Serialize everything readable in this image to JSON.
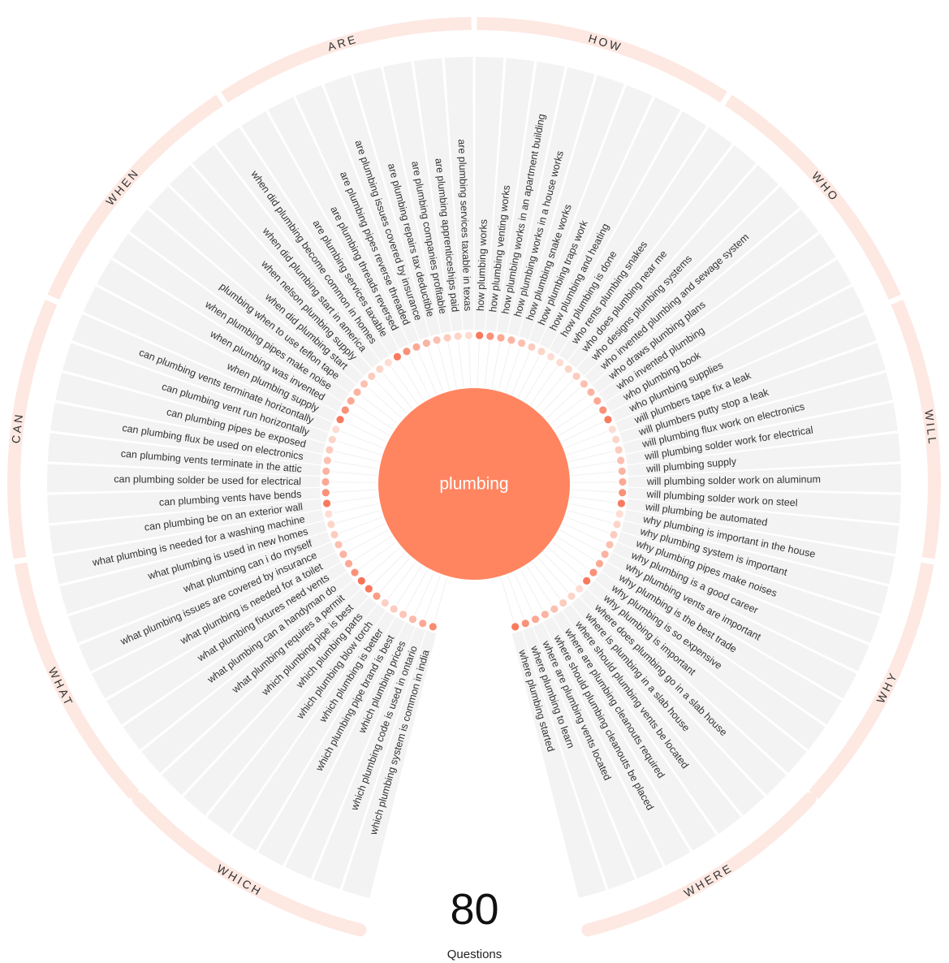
{
  "center": {
    "keyword": "plumbing"
  },
  "summary": {
    "count": "80",
    "label": "Questions"
  },
  "colors": {
    "accent": "#ff8561",
    "ring": "#fde8e2",
    "spoke_bg": "#f3f3f3",
    "dot_light": "#fde3da",
    "text": "#333333"
  },
  "categories": [
    {
      "name": "WHICH",
      "questions": [
        {
          "text": "which plumbing system is common in india",
          "volume": 0.75
        },
        {
          "text": "which plumbing code is used in ontario",
          "volume": 0.5
        },
        {
          "text": "which plumbing prices",
          "volume": 0.35
        },
        {
          "text": "which plumbing pipe brand is best",
          "volume": 0.25
        },
        {
          "text": "which plumbing is better",
          "volume": 0.2
        },
        {
          "text": "which plumbing blow torch",
          "volume": 0.15
        },
        {
          "text": "which plumbing parts",
          "volume": 0.6
        },
        {
          "text": "which plumbing pipe is best",
          "volume": 0.9
        }
      ]
    },
    {
      "name": "WHAT",
      "questions": [
        {
          "text": "what plumbing requires a permit",
          "volume": 0.95
        },
        {
          "text": "what plumbing can a handyman do",
          "volume": 0.7
        },
        {
          "text": "what plumbing fixtures need vents",
          "volume": 0.5
        },
        {
          "text": "what plumbing is needed for a toilet",
          "volume": 0.4
        },
        {
          "text": "what plumbing issues are covered by insurance",
          "volume": 0.3
        },
        {
          "text": "what plumbing can i do myself",
          "volume": 0.2
        },
        {
          "text": "what plumbing is used in new homes",
          "volume": 0.12
        },
        {
          "text": "what plumbing is needed for a washing machine",
          "volume": 0.05
        }
      ]
    },
    {
      "name": "CAN",
      "questions": [
        {
          "text": "can plumbing be on an exterior wall",
          "volume": 0.9
        },
        {
          "text": "can plumbing vents have bends",
          "volume": 0.7
        },
        {
          "text": "can plumbing solder be used for electrical",
          "volume": 0.5
        },
        {
          "text": "can plumbing vents terminate in the attic",
          "volume": 0.4
        },
        {
          "text": "can plumbing flux be used on electronics",
          "volume": 0.3
        },
        {
          "text": "can plumbing pipes be exposed",
          "volume": 0.2
        },
        {
          "text": "can plumbing vent run horizontally",
          "volume": 0.12
        },
        {
          "text": "can plumbing vents terminate horizontally",
          "volume": 0.05
        }
      ]
    },
    {
      "name": "WHEN",
      "questions": [
        {
          "text": "when plumbing supply",
          "volume": 0.9
        },
        {
          "text": "when plumbing was invented",
          "volume": 0.7
        },
        {
          "text": "when plumbing pipes make noise",
          "volume": 0.5
        },
        {
          "text": "plumbing when to use teflon tape",
          "volume": 0.4
        },
        {
          "text": "when did plumbing start",
          "volume": 0.3
        },
        {
          "text": "when nelson plumbing supply",
          "volume": 0.2
        },
        {
          "text": "when did plumbing start in america",
          "volume": 0.12
        },
        {
          "text": "when did plumbing become common in homes",
          "volume": 0.05
        }
      ]
    },
    {
      "name": "ARE",
      "questions": [
        {
          "text": "are plumbing services taxable",
          "volume": 0.9
        },
        {
          "text": "are plumbing threads reversed",
          "volume": 0.7
        },
        {
          "text": "are plumbing pipes reverse threaded",
          "volume": 0.5
        },
        {
          "text": "are plumbing issues covered by insurance",
          "volume": 0.4
        },
        {
          "text": "are plumbing repairs tax deductible",
          "volume": 0.3
        },
        {
          "text": "are plumbing companies profitable",
          "volume": 0.2
        },
        {
          "text": "are plumbing apprenticeships paid",
          "volume": 0.12
        },
        {
          "text": "are plumbing services taxable in texas",
          "volume": 0.05
        }
      ]
    },
    {
      "name": "HOW",
      "questions": [
        {
          "text": "how plumbing works",
          "volume": 0.9
        },
        {
          "text": "how plumbing venting works",
          "volume": 0.7
        },
        {
          "text": "how plumbing works in an apartment building",
          "volume": 0.5
        },
        {
          "text": "how plumbing works in a house works",
          "volume": 0.4
        },
        {
          "text": "how plumbing snake works",
          "volume": 0.3
        },
        {
          "text": "how plumbing traps work",
          "volume": 0.2
        },
        {
          "text": "how plumbing and heating",
          "volume": 0.12
        },
        {
          "text": "how plumbing is done",
          "volume": 0.05
        }
      ]
    },
    {
      "name": "WHO",
      "questions": [
        {
          "text": "who rents plumbing snakes",
          "volume": 0.05
        },
        {
          "text": "who does plumbing near me",
          "volume": 0.12
        },
        {
          "text": "who designs plumbing systems",
          "volume": 0.2
        },
        {
          "text": "who invented plumbing and sewage system",
          "volume": 0.3
        },
        {
          "text": "who draws plumbing plans",
          "volume": 0.4
        },
        {
          "text": "who invented plumbing",
          "volume": 0.5
        },
        {
          "text": "who plumbing book",
          "volume": 0.7
        },
        {
          "text": "who plumbing supplies",
          "volume": 0.9
        }
      ]
    },
    {
      "name": "WILL",
      "questions": [
        {
          "text": "will plumbers tape fix a leak",
          "volume": 0.05
        },
        {
          "text": "will plumbers putty stop a leak",
          "volume": 0.12
        },
        {
          "text": "will plumbing flux work on electronics",
          "volume": 0.2
        },
        {
          "text": "will plumbing solder work for electrical",
          "volume": 0.3
        },
        {
          "text": "will plumbing supply",
          "volume": 0.4
        },
        {
          "text": "will plumbing solder work on aluminum",
          "volume": 0.5
        },
        {
          "text": "will plumbing solder work on steel",
          "volume": 0.7
        },
        {
          "text": "will plumbing be automated",
          "volume": 0.9
        }
      ]
    },
    {
      "name": "WHY",
      "questions": [
        {
          "text": "why plumbing is important in the house",
          "volume": 0.05
        },
        {
          "text": "why plumbing system is important",
          "volume": 0.12
        },
        {
          "text": "why plumbing pipes make noises",
          "volume": 0.2
        },
        {
          "text": "why plumbing is a good career",
          "volume": 0.3
        },
        {
          "text": "why plumbing vents are important",
          "volume": 0.4
        },
        {
          "text": "why plumbing is the best trade",
          "volume": 0.5
        },
        {
          "text": "why plumbing is so expensive",
          "volume": 0.7
        },
        {
          "text": "why plumbing is important",
          "volume": 0.9
        }
      ]
    },
    {
      "name": "WHERE",
      "questions": [
        {
          "text": "where does plumbing go in a slab house",
          "volume": 0.05
        },
        {
          "text": "where is plumbing in a slab house",
          "volume": 0.12
        },
        {
          "text": "where should plumbing vents be located",
          "volume": 0.2
        },
        {
          "text": "where are plumbing cleanouts required",
          "volume": 0.3
        },
        {
          "text": "where should plumbing cleanouts be placed",
          "volume": 0.4
        },
        {
          "text": "where are plumbing vents located",
          "volume": 0.5
        },
        {
          "text": "where plumbing to learn",
          "volume": 0.7
        },
        {
          "text": "where plumbing started",
          "volume": 0.9
        }
      ]
    }
  ]
}
